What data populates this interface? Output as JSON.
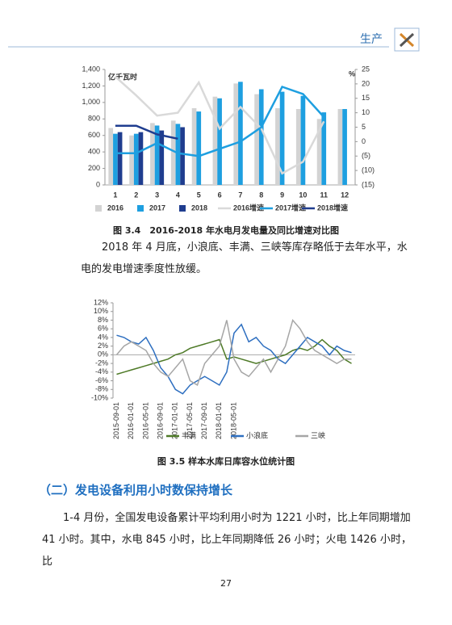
{
  "header": {
    "title": "生产"
  },
  "chart_data": [
    {
      "type": "bar",
      "y_label": "亿千瓦时",
      "y2_label": "%",
      "categories": [
        "1",
        "2",
        "3",
        "4",
        "5",
        "6",
        "7",
        "8",
        "9",
        "10",
        "11",
        "12"
      ],
      "ylim": [
        0,
        1400
      ],
      "yticks": [
        0,
        200,
        400,
        600,
        800,
        {
          "value": 1000,
          "label": "1,000"
        },
        {
          "value": 1200,
          "label": "1,200"
        },
        {
          "value": 1400,
          "label": "1,400"
        }
      ],
      "y2lim": [
        -15,
        25
      ],
      "y2ticks": [
        {
          "value": -15,
          "label": "(15)"
        },
        {
          "value": -10,
          "label": "(10)"
        },
        {
          "value": -5,
          "label": "(5)"
        },
        0,
        5,
        10,
        15,
        20,
        25
      ],
      "series": [
        {
          "name": "2016",
          "type": "bar",
          "color": "#d3d3d3",
          "values": [
            690,
            600,
            750,
            780,
            930,
            1070,
            1230,
            1100,
            930,
            920,
            800,
            920
          ]
        },
        {
          "name": "2017",
          "type": "bar",
          "color": "#1e9fe0",
          "values": [
            620,
            620,
            720,
            740,
            890,
            1050,
            1250,
            1160,
            1130,
            1080,
            880,
            920
          ]
        },
        {
          "name": "2018",
          "type": "bar",
          "color": "#1f3d8f",
          "values": [
            640,
            640,
            660,
            700,
            null,
            null,
            null,
            null,
            null,
            null,
            null,
            null
          ]
        },
        {
          "name": "2016增速",
          "type": "line",
          "axis": "y2",
          "color": "#d9d9d9",
          "values": [
            22.5,
            16,
            9,
            10,
            20.5,
            4.5,
            12,
            4.5,
            -11,
            -7,
            7,
            null
          ]
        },
        {
          "name": "2017增速",
          "type": "line",
          "axis": "y2",
          "color": "#1e9fe0",
          "values": [
            -4,
            -4,
            -0.5,
            -4,
            -5,
            -2.5,
            0,
            5,
            19,
            16.5,
            8.5,
            null
          ]
        },
        {
          "name": "2018增速",
          "type": "line",
          "axis": "y2",
          "color": "#1f3d8f",
          "values": [
            5.5,
            5.5,
            2.5,
            1,
            null,
            null,
            null,
            null,
            null,
            null,
            null,
            null
          ]
        }
      ]
    },
    {
      "type": "line",
      "categories": [
        "2015-09-01",
        null,
        "2016-01-01",
        null,
        "2016-05-01",
        null,
        "2016-09-01",
        null,
        "2017-01-01",
        null,
        "2017-05-01",
        null,
        "2017-09-01",
        null,
        "2018-01-01",
        null,
        "2018-05-01",
        null,
        null,
        null,
        null,
        null,
        null,
        null,
        null,
        null,
        null,
        null,
        null,
        null,
        null,
        null,
        null
      ],
      "ylim": [
        -10,
        12
      ],
      "yticks": [
        {
          "value": -10,
          "label": "-10%"
        },
        {
          "value": -8,
          "label": "-8%"
        },
        {
          "value": -6,
          "label": "-6%"
        },
        {
          "value": -4,
          "label": "-4%"
        },
        {
          "value": -2,
          "label": "-2%"
        },
        {
          "value": 0,
          "label": "0%"
        },
        {
          "value": 2,
          "label": "2%"
        },
        {
          "value": 4,
          "label": "4%"
        },
        {
          "value": 6,
          "label": "6%"
        },
        {
          "value": 8,
          "label": "8%"
        },
        {
          "value": 10,
          "label": "10%"
        },
        {
          "value": 12,
          "label": "12%"
        }
      ],
      "series": [
        {
          "name": "丰满",
          "color": "#4e7a27",
          "values": [
            -4.5,
            -4,
            -3.5,
            -3,
            -2.5,
            -2,
            -1.5,
            -1,
            0,
            0.5,
            1.5,
            2,
            2.5,
            3,
            3.5,
            -1,
            -0.5,
            -1,
            -1.5,
            -2,
            -1.5,
            -1,
            -0.5,
            0,
            1,
            1.5,
            1,
            2,
            3.5,
            2,
            1,
            -1,
            -2
          ]
        },
        {
          "name": "小浪底",
          "color": "#2e6fc0",
          "values": [
            4.5,
            4,
            3,
            2.5,
            4,
            1,
            -3,
            -5,
            -8,
            -9,
            -7,
            -6,
            -5,
            -6,
            -7,
            -4,
            5,
            7,
            3,
            4,
            2,
            1,
            -1,
            -2,
            0,
            2,
            4,
            3,
            2,
            0,
            2,
            1,
            0.5
          ]
        },
        {
          "name": "三峡",
          "color": "#a6a6a6",
          "values": [
            0,
            2,
            3,
            2,
            1,
            -2,
            -4,
            -5,
            -3,
            -1,
            -6,
            -7,
            -2,
            0,
            2,
            8,
            -1,
            -4,
            -5,
            -3,
            -1,
            -4,
            -1,
            2,
            8,
            6,
            3,
            1,
            0,
            -1,
            -2,
            -1,
            -1
          ]
        }
      ]
    }
  ],
  "captions": [
    "图 3.4　2016-2018 年水电月发电量及同比增速对比图",
    "图 3.5  样本水库日库容水位统计图"
  ],
  "paragraphs": [
    "2018 年 4 月底，小浪底、丰满、三峡等库存略低于去年水平，水电的发电增速季度性放缓。",
    "1-4 月份，全国发电设备累计平均利用小时为 1221 小时，比上年同期增加 41 小时。其中，水电 845 小时，比上年同期降低 26 小时；火电 1426 小时，比"
  ],
  "section_heading": "（二）发电设备利用小时数保持增长",
  "page_number": "27"
}
